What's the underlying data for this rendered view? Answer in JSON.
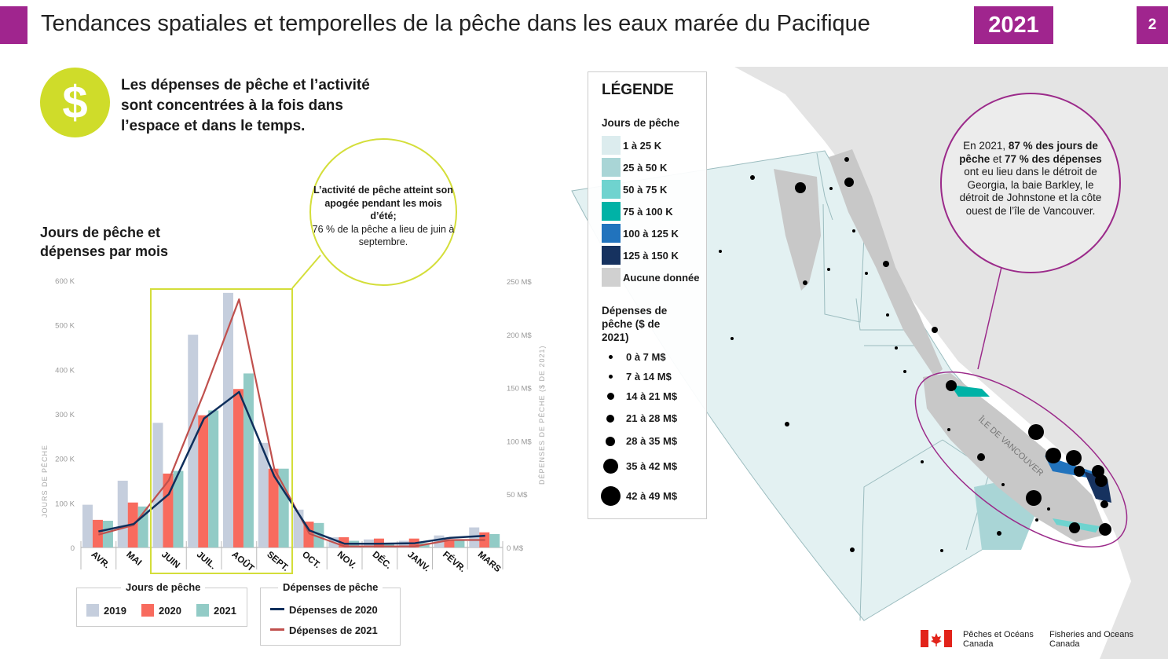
{
  "header": {
    "title": "Tendances spatiales et temporelles de la pêche dans les eaux marée du Pacifique",
    "year": "2021",
    "page": "2"
  },
  "intro": {
    "icon": "dollar-icon",
    "symbol": "$",
    "text": "Les dépenses de pêche et l’activité sont concentrées à la fois dans l’espace et dans le temps."
  },
  "callout": {
    "bold": "L’activité de pêche atteint son apogée pendant les mois d’été;",
    "text": "76 % de la pêche a lieu de juin à septembre."
  },
  "chart_data": {
    "type": "bar",
    "title": "Jours de pêche et dépenses par mois",
    "categories": [
      "AVR.",
      "MAI",
      "JUIN",
      "JUIL.",
      "AOÛT",
      "SEPT.",
      "OCT.",
      "NOV.",
      "DÉC.",
      "JANV.",
      "FÉVR.",
      "MARS"
    ],
    "ylabel": "JOURS DE PÊCHE",
    "ylim": [
      0,
      600000
    ],
    "yticks": [
      "0",
      "100 K",
      "200 K",
      "300 K",
      "400 K",
      "500 K",
      "600 K"
    ],
    "y2label": "DÉPENSES DE PÊCHE ($ DE 2021)",
    "y2lim": [
      0,
      250
    ],
    "y2ticks": [
      "0 M$",
      "50 M$",
      "100 M$",
      "150 M$",
      "200 M$",
      "250 M$"
    ],
    "series": [
      {
        "name": "2019",
        "kind": "bar",
        "color": "#c5cedd",
        "values": [
          96000,
          150000,
          280000,
          478000,
          572000,
          235000,
          85000,
          23000,
          18000,
          15000,
          27000,
          45000
        ]
      },
      {
        "name": "2020",
        "kind": "bar",
        "color": "#f86b5e",
        "values": [
          62000,
          101000,
          166000,
          297000,
          356000,
          177000,
          58000,
          23000,
          20000,
          20000,
          18000,
          34000
        ]
      },
      {
        "name": "2021",
        "kind": "bar",
        "color": "#92cbc6",
        "values": [
          60000,
          92000,
          172000,
          308000,
          391000,
          177000,
          55000,
          15000,
          10000,
          10000,
          16000,
          30000
        ]
      },
      {
        "name": "Dépenses de 2020",
        "kind": "line",
        "axis": "right",
        "color": "#0f2f5c",
        "values": [
          15,
          22,
          50,
          121,
          146,
          67,
          16,
          3.5,
          3.5,
          4,
          9,
          11
        ]
      },
      {
        "name": "Dépenses de 2021",
        "kind": "line",
        "axis": "right",
        "color": "#c0504d",
        "values": [
          12,
          21,
          63,
          145,
          233,
          74,
          13,
          1,
          1,
          1,
          7,
          7
        ]
      }
    ],
    "legend": {
      "bars_title": "Jours de pêche",
      "lines_title": "Dépenses de pêche"
    },
    "highlight": [
      "JUIN",
      "SEPT."
    ]
  },
  "map_legend": {
    "title": "LÉGENDE",
    "days_title": "Jours de pêche",
    "days": [
      {
        "label": "1 à 25 K",
        "color": "#dcecee"
      },
      {
        "label": "25 à 50 K",
        "color": "#a9d5d6"
      },
      {
        "label": "50 à 75 K",
        "color": "#6fd3cf"
      },
      {
        "label": "75 à 100 K",
        "color": "#00b2a6"
      },
      {
        "label": "100 à 125 K",
        "color": "#2173bd"
      },
      {
        "label": "125 à 150 K",
        "color": "#16325f"
      },
      {
        "label": "Aucune donnée",
        "color": "#d0d0d0"
      }
    ],
    "spend_title": "Dépenses de pêche ($ de 2021)",
    "spend": [
      "0 à 7 M$",
      "7 à 14 M$",
      "14 à 21 M$",
      "21 à 28 M$",
      "28 à 35 M$",
      "35 à 42 M$",
      "42 à 49 M$"
    ]
  },
  "map": {
    "island_label": "ÎLE DE VANCOUVER",
    "note": {
      "p1": "En 2021, ",
      "b1": "87 % des jours de pêche",
      "p2": " et ",
      "b2": "77 % des dépenses",
      "p3": " ont eu lieu dans le détroit de Georgia, la baie Barkley, le détroit de Johnstone et la côte ouest de l’île de Vancouver."
    }
  },
  "footer": {
    "fr1": "Pêches et Océans",
    "fr2": "Canada",
    "en1": "Fisheries and Oceans",
    "en2": "Canada"
  },
  "colors": {
    "brand": "#a0258e",
    "accent": "#cfdc2a"
  }
}
